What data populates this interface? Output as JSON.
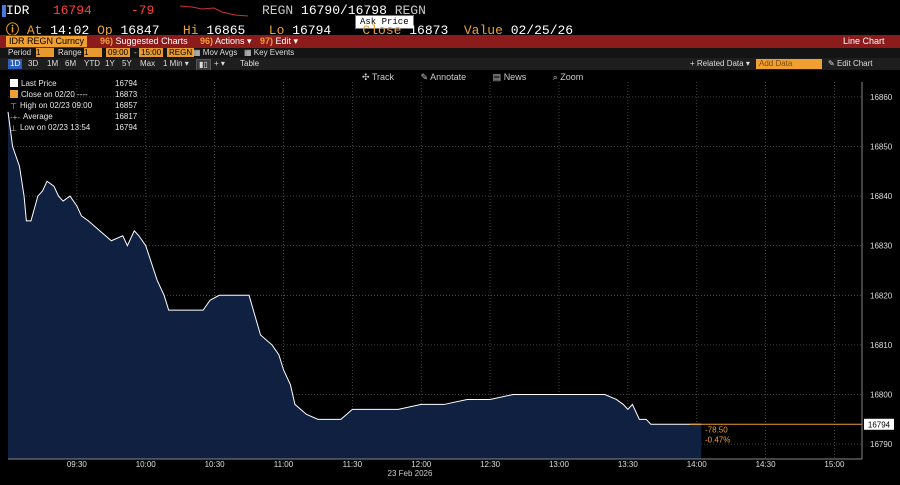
{
  "header": {
    "ticker": "IDR",
    "last": "16794",
    "change": "-79",
    "bid_ask_label": "REGN",
    "bid": "16790",
    "ask": "16798",
    "bid_ask_source": "REGN",
    "tooltip": "Ask Price",
    "at_label": "At",
    "at_time": "14:02",
    "op_label": "Op",
    "op": "16847",
    "hi_label": "Hi",
    "hi": "16865",
    "lo_label": "Lo",
    "lo": "16794",
    "close_label": "Close",
    "close": "16873",
    "value_label": "Value",
    "value_date": "02/25/26",
    "colors": {
      "accent": "#f0a030",
      "negative": "#ff4040",
      "bar": "#8c1c1c"
    }
  },
  "command_bar": {
    "security": "IDR REGN Curncy",
    "suggested_num": "96)",
    "suggested": "Suggested Charts",
    "actions_num": "96)",
    "actions": "Actions",
    "edit_num": "97)",
    "edit": "Edit",
    "chart_type": "Line Chart"
  },
  "period_bar": {
    "periods": [
      "1D",
      "3D",
      "1M",
      "6M",
      "YTD",
      "1Y",
      "5Y",
      "Max"
    ],
    "interval": "1 Min",
    "period_label": "Period",
    "period_value": "1",
    "range_label": "Range",
    "range_start": "09:00",
    "range_end": "15:00",
    "source": "REGN",
    "mov_avgs": "Mov Avgs",
    "key_events": "Key Events",
    "table": "Table",
    "related_data": "Related Data",
    "add_data": "Add Data",
    "edit_chart": "Edit Chart"
  },
  "tools": {
    "track": "Track",
    "annotate": "Annotate",
    "news": "News",
    "zoom": "Zoom"
  },
  "legend": [
    {
      "label": "Last Price",
      "value": "16794",
      "color": "#ffffff"
    },
    {
      "label": "Close on 02/20  ----",
      "value": "16873",
      "color": "#f0a030"
    },
    {
      "label": "High on 02/23 09:00",
      "value": "16857",
      "color": "#bbbbbb"
    },
    {
      "label": "Average",
      "value": "16817",
      "color": "#bbbbbb"
    },
    {
      "label": "Low on 02/23 13:54",
      "value": "16794",
      "color": "#bbbbbb"
    }
  ],
  "end_labels": {
    "change": "-78.50",
    "pct": "-0.47%",
    "last_tag": "16794"
  },
  "chart_data": {
    "type": "area",
    "x_label": "23 Feb 2026",
    "x_ticks": [
      "09:30",
      "10:00",
      "10:30",
      "11:00",
      "11:30",
      "12:00",
      "12:30",
      "13:00",
      "13:30",
      "14:00",
      "14:30",
      "15:00"
    ],
    "y_ticks": [
      16790,
      16800,
      16810,
      16820,
      16830,
      16840,
      16850,
      16860
    ],
    "ylim": [
      16787,
      16863
    ],
    "grid": true,
    "x": [
      "09:00",
      "09:02",
      "09:05",
      "09:07",
      "09:08",
      "09:10",
      "09:13",
      "09:15",
      "09:17",
      "09:20",
      "09:22",
      "09:24",
      "09:27",
      "09:30",
      "09:32",
      "09:35",
      "09:40",
      "09:45",
      "09:50",
      "09:52",
      "09:55",
      "09:57",
      "10:00",
      "10:05",
      "10:08",
      "10:10",
      "10:15",
      "10:20",
      "10:25",
      "10:28",
      "10:32",
      "10:35",
      "10:38",
      "10:40",
      "10:45",
      "10:50",
      "10:55",
      "10:58",
      "11:00",
      "11:03",
      "11:05",
      "11:10",
      "11:15",
      "11:20",
      "11:25",
      "11:30",
      "11:35",
      "11:40",
      "11:45",
      "11:50",
      "12:00",
      "12:10",
      "12:20",
      "12:30",
      "12:40",
      "12:50",
      "13:00",
      "13:10",
      "13:15",
      "13:20",
      "13:25",
      "13:28",
      "13:30",
      "13:32",
      "13:35",
      "13:38",
      "13:40",
      "13:45",
      "13:50",
      "13:54",
      "13:58",
      "14:02"
    ],
    "values": [
      16857,
      16850,
      16846,
      16840,
      16835,
      16835,
      16840,
      16841,
      16843,
      16842,
      16840,
      16839,
      16840,
      16838,
      16836,
      16835,
      16833,
      16831,
      16832,
      16830,
      16833,
      16832,
      16830,
      16823,
      16820,
      16817,
      16817,
      16817,
      16817,
      16819,
      16820,
      16820,
      16820,
      16820,
      16820,
      16812,
      16810,
      16808,
      16805,
      16802,
      16798,
      16796,
      16795,
      16795,
      16795,
      16797,
      16797,
      16797,
      16797,
      16797,
      16798,
      16798,
      16799,
      16799,
      16800,
      16800,
      16800,
      16800,
      16800,
      16800,
      16799,
      16798,
      16797,
      16798,
      16795,
      16795,
      16794,
      16794,
      16794,
      16794,
      16794,
      16794
    ],
    "fill_color": "#102040",
    "line_color": "#ffffff"
  }
}
